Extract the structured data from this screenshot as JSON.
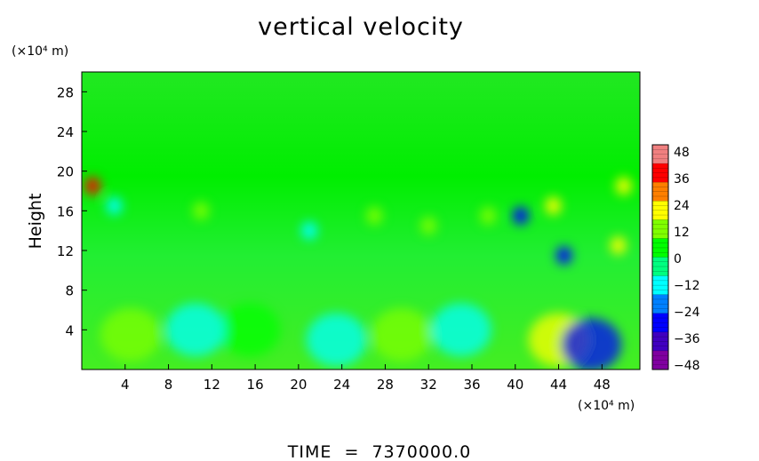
{
  "chart_data": {
    "type": "heatmap",
    "title": "vertical velocity",
    "footer": "TIME  =  7370000.0",
    "xlabel": "",
    "ylabel": "Height",
    "x_unit": "(×10⁴ m)",
    "y_unit": "(×10⁴ m)",
    "xlim": [
      0,
      51.5
    ],
    "ylim": [
      0,
      30
    ],
    "x_ticks": [
      4,
      8,
      12,
      16,
      20,
      24,
      28,
      32,
      36,
      40,
      44,
      48
    ],
    "y_ticks": [
      4,
      8,
      12,
      16,
      20,
      24,
      28
    ],
    "colorbar": {
      "min": -48,
      "max": 48,
      "ticks": [
        48,
        36,
        24,
        12,
        0,
        -12,
        -24,
        -36,
        -48
      ],
      "colors": [
        "#f08080",
        "#ff0000",
        "#ff7f00",
        "#ffff00",
        "#80ff00",
        "#00ff00",
        "#00ff80",
        "#00ffff",
        "#0080ff",
        "#0000ff",
        "#4000c0",
        "#8000a0"
      ]
    },
    "background_value": 3,
    "features": [
      {
        "region": "lower-layer updraft",
        "x": 4.5,
        "y": 3.5,
        "value": 12
      },
      {
        "region": "lower-layer updraft",
        "x": 15.5,
        "y": 4,
        "value": 8
      },
      {
        "region": "lower-layer updraft",
        "x": 29.5,
        "y": 3.5,
        "value": 14
      },
      {
        "region": "lower-layer updraft",
        "x": 44,
        "y": 3,
        "value": 20
      },
      {
        "region": "lower-layer downdraft",
        "x": 10.5,
        "y": 4,
        "value": -10
      },
      {
        "region": "lower-layer downdraft",
        "x": 23.5,
        "y": 3,
        "value": -9
      },
      {
        "region": "lower-layer downdraft",
        "x": 35,
        "y": 4,
        "value": -8
      },
      {
        "region": "lower-layer downdraft",
        "x": 47,
        "y": 2.5,
        "value": -28
      },
      {
        "region": "upper cell",
        "x": 1,
        "y": 18.5,
        "value": 36
      },
      {
        "region": "upper cell",
        "x": 40.5,
        "y": 15.5,
        "value": -30
      },
      {
        "region": "upper cell",
        "x": 44.5,
        "y": 11.5,
        "value": -24
      },
      {
        "region": "upper cell",
        "x": 50,
        "y": 18.5,
        "value": 20
      },
      {
        "region": "upper cell",
        "x": 43.5,
        "y": 16.5,
        "value": 20
      },
      {
        "region": "upper cell",
        "x": 49.5,
        "y": 12.5,
        "value": 18
      },
      {
        "region": "upper cell",
        "x": 11,
        "y": 16,
        "value": 16
      },
      {
        "region": "upper cell",
        "x": 27,
        "y": 15.5,
        "value": 16
      },
      {
        "region": "upper cell",
        "x": 37.5,
        "y": 15.5,
        "value": 14
      },
      {
        "region": "upper cell",
        "x": 21,
        "y": 14,
        "value": -10
      },
      {
        "region": "upper cell",
        "x": 3,
        "y": 16.5,
        "value": -10
      },
      {
        "region": "upper cell",
        "x": 32,
        "y": 14.5,
        "value": 12
      }
    ]
  }
}
